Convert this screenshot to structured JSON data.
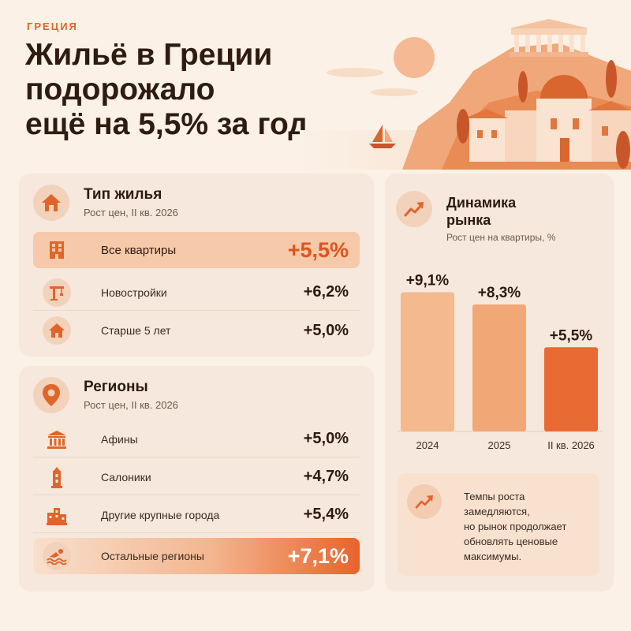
{
  "header": {
    "kicker": "ГРЕЦИЯ",
    "title_lines": [
      "Жильё в Греции",
      "подорожало",
      "ещё на 5,5% за год"
    ]
  },
  "housing_type": {
    "title": "Тип жилья",
    "subtitle": "Рост цен, II кв. 2026",
    "icon": "house-icon",
    "rows": [
      {
        "label": "Все квартиры",
        "value": "+5,5%",
        "icon": "apartment-building-icon"
      },
      {
        "label": "Новостройки",
        "value": "+6,2%",
        "icon": "construction-crane-icon"
      },
      {
        "label": "Старше 5 лет",
        "value": "+5,0%",
        "icon": "house-icon"
      }
    ]
  },
  "regions": {
    "title": "Регионы",
    "subtitle": "Рост цен, II кв. 2026",
    "icon": "map-pin-icon",
    "rows": [
      {
        "label": "Афины",
        "value": "+5,0%",
        "icon": "temple-icon"
      },
      {
        "label": "Салоники",
        "value": "+4,7%",
        "icon": "tower-icon"
      },
      {
        "label": "Другие крупные города",
        "value": "+5,4%",
        "icon": "city-icon"
      },
      {
        "label": "Остальные регионы",
        "value": "+7,1%",
        "icon": "swimmer-icon"
      }
    ]
  },
  "market": {
    "title_lines": [
      "Динамика",
      "рынка"
    ],
    "subtitle": "Рост цен на квартиры, %",
    "icon": "trend-up-icon",
    "note": [
      "Темпы роста",
      "замедляются,",
      "но рынок продолжает",
      "обновлять ценовые",
      "максимумы."
    ]
  },
  "colors": {
    "accent": "#e0652a",
    "bar_2024": "#f5b98e",
    "bar_2025": "#f2a777",
    "bar_2026": "#e76b32",
    "background": "#fbf1e7",
    "card": "#f6e8dc"
  },
  "chart_data": {
    "type": "bar",
    "categories": [
      "2024",
      "2025",
      "II кв. 2026"
    ],
    "values": [
      9.1,
      8.3,
      5.5
    ],
    "value_labels": [
      "+9,1%",
      "+8,3%",
      "+5,5%"
    ],
    "ylim": [
      0,
      10
    ],
    "grid": false,
    "legend": "none"
  }
}
